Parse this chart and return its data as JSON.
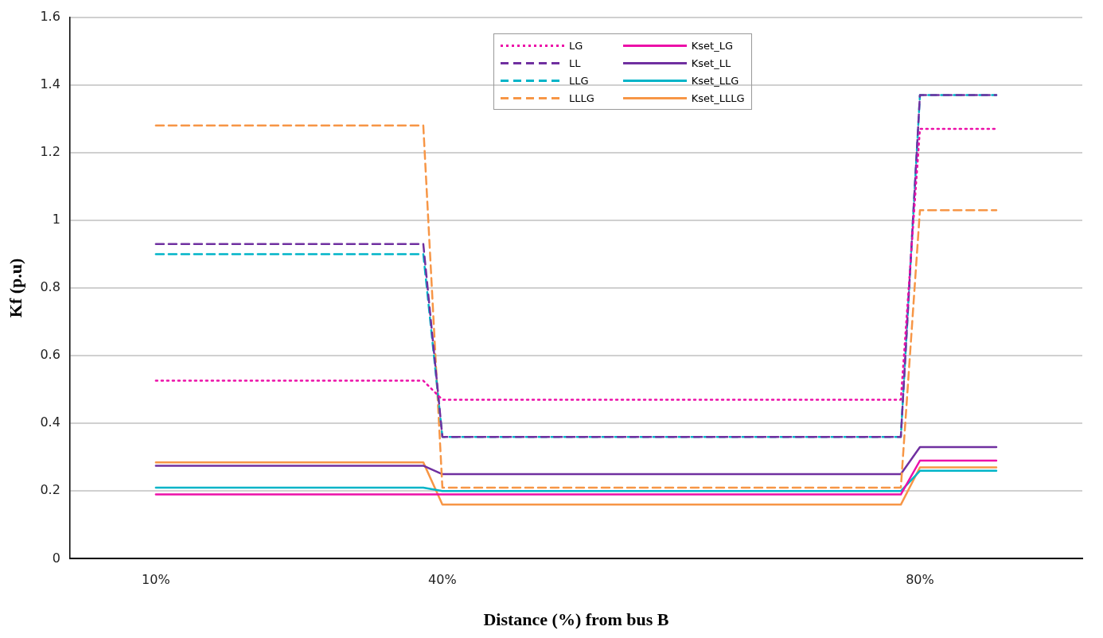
{
  "chart_data": {
    "type": "line",
    "xlabel": "Distance (%) from bus B",
    "ylabel": "Kf (p.u)",
    "categories": [
      null,
      null,
      null,
      null,
      "10%",
      null,
      null,
      null,
      null,
      null,
      null,
      null,
      null,
      null,
      null,
      null,
      null,
      null,
      null,
      "40%",
      null,
      null,
      null,
      null,
      null,
      null,
      null,
      null,
      null,
      null,
      null,
      null,
      null,
      null,
      null,
      null,
      null,
      null,
      null,
      null,
      null,
      null,
      null,
      null,
      "80%",
      null,
      null,
      null,
      null,
      null,
      null,
      null,
      null
    ],
    "ylim": [
      0,
      1.6
    ],
    "yticks": [
      0,
      0.2,
      0.4,
      0.6,
      0.8,
      1,
      1.2,
      1.4,
      1.6
    ],
    "grid": "y",
    "legend": "top",
    "marker": "none",
    "series": [
      {
        "name": "LG",
        "color": "#ec0fa8",
        "line_style": "dotted",
        "values": [
          null,
          null,
          null,
          null,
          0.526,
          0.526,
          0.526,
          0.526,
          0.526,
          0.526,
          0.526,
          0.526,
          0.526,
          0.526,
          0.526,
          0.526,
          0.526,
          0.526,
          0.526,
          0.47,
          0.47,
          0.47,
          0.47,
          0.47,
          0.47,
          0.47,
          0.47,
          0.47,
          0.47,
          0.47,
          0.47,
          0.47,
          0.47,
          0.47,
          0.47,
          0.47,
          0.47,
          0.47,
          0.47,
          0.47,
          0.47,
          0.47,
          0.47,
          0.47,
          1.27,
          1.27,
          1.27,
          1.27,
          1.27,
          null,
          null,
          null,
          null
        ]
      },
      {
        "name": "LL",
        "color": "#7030a0",
        "line_style": "dashed",
        "values": [
          null,
          null,
          null,
          null,
          0.93,
          0.93,
          0.93,
          0.93,
          0.93,
          0.93,
          0.93,
          0.93,
          0.93,
          0.93,
          0.93,
          0.93,
          0.93,
          0.93,
          0.93,
          0.36,
          0.36,
          0.36,
          0.36,
          0.36,
          0.36,
          0.36,
          0.36,
          0.36,
          0.36,
          0.36,
          0.36,
          0.36,
          0.36,
          0.36,
          0.36,
          0.36,
          0.36,
          0.36,
          0.36,
          0.36,
          0.36,
          0.36,
          0.36,
          0.36,
          1.37,
          1.37,
          1.37,
          1.37,
          1.37,
          null,
          null,
          null,
          null
        ]
      },
      {
        "name": "LLG",
        "color": "#00b4c8",
        "line_style": "dashed",
        "values": [
          null,
          null,
          null,
          null,
          0.9,
          0.9,
          0.9,
          0.9,
          0.9,
          0.9,
          0.9,
          0.9,
          0.9,
          0.9,
          0.9,
          0.9,
          0.9,
          0.9,
          0.9,
          0.36,
          0.36,
          0.36,
          0.36,
          0.36,
          0.36,
          0.36,
          0.36,
          0.36,
          0.36,
          0.36,
          0.36,
          0.36,
          0.36,
          0.36,
          0.36,
          0.36,
          0.36,
          0.36,
          0.36,
          0.36,
          0.36,
          0.36,
          0.36,
          0.36,
          1.37,
          1.37,
          1.37,
          1.37,
          1.37,
          null,
          null,
          null,
          null
        ]
      },
      {
        "name": "LLLG",
        "color": "#f79646",
        "line_style": "dashed",
        "values": [
          null,
          null,
          null,
          null,
          1.28,
          1.28,
          1.28,
          1.28,
          1.28,
          1.28,
          1.28,
          1.28,
          1.28,
          1.28,
          1.28,
          1.28,
          1.28,
          1.28,
          1.28,
          0.21,
          0.21,
          0.21,
          0.21,
          0.21,
          0.21,
          0.21,
          0.21,
          0.21,
          0.21,
          0.21,
          0.21,
          0.21,
          0.21,
          0.21,
          0.21,
          0.21,
          0.21,
          0.21,
          0.21,
          0.21,
          0.21,
          0.21,
          0.21,
          0.21,
          1.03,
          1.03,
          1.03,
          1.03,
          1.03,
          null,
          null,
          null,
          null
        ]
      },
      {
        "name": "Kset_LG",
        "color": "#ec0fa8",
        "line_style": "solid",
        "values": [
          null,
          null,
          null,
          null,
          0.19,
          0.19,
          0.19,
          0.19,
          0.19,
          0.19,
          0.19,
          0.19,
          0.19,
          0.19,
          0.19,
          0.19,
          0.19,
          0.19,
          0.19,
          0.19,
          0.19,
          0.19,
          0.19,
          0.19,
          0.19,
          0.19,
          0.19,
          0.19,
          0.19,
          0.19,
          0.19,
          0.19,
          0.19,
          0.19,
          0.19,
          0.19,
          0.19,
          0.19,
          0.19,
          0.19,
          0.19,
          0.19,
          0.19,
          0.19,
          0.29,
          0.29,
          0.29,
          0.29,
          0.29,
          null,
          null,
          null,
          null
        ]
      },
      {
        "name": "Kset_LL",
        "color": "#7030a0",
        "line_style": "solid",
        "values": [
          null,
          null,
          null,
          null,
          0.275,
          0.275,
          0.275,
          0.275,
          0.275,
          0.275,
          0.275,
          0.275,
          0.275,
          0.275,
          0.275,
          0.275,
          0.275,
          0.275,
          0.275,
          0.25,
          0.25,
          0.25,
          0.25,
          0.25,
          0.25,
          0.25,
          0.25,
          0.25,
          0.25,
          0.25,
          0.25,
          0.25,
          0.25,
          0.25,
          0.25,
          0.25,
          0.25,
          0.25,
          0.25,
          0.25,
          0.25,
          0.25,
          0.25,
          0.25,
          0.33,
          0.33,
          0.33,
          0.33,
          0.33,
          null,
          null,
          null,
          null
        ]
      },
      {
        "name": "Kset_LLG",
        "color": "#00b4c8",
        "line_style": "solid",
        "values": [
          null,
          null,
          null,
          null,
          0.21,
          0.21,
          0.21,
          0.21,
          0.21,
          0.21,
          0.21,
          0.21,
          0.21,
          0.21,
          0.21,
          0.21,
          0.21,
          0.21,
          0.21,
          0.2,
          0.2,
          0.2,
          0.2,
          0.2,
          0.2,
          0.2,
          0.2,
          0.2,
          0.2,
          0.2,
          0.2,
          0.2,
          0.2,
          0.2,
          0.2,
          0.2,
          0.2,
          0.2,
          0.2,
          0.2,
          0.2,
          0.2,
          0.2,
          0.2,
          0.26,
          0.26,
          0.26,
          0.26,
          0.26,
          null,
          null,
          null,
          null
        ]
      },
      {
        "name": "Kset_LLLG",
        "color": "#f79646",
        "line_style": "solid",
        "values": [
          null,
          null,
          null,
          null,
          0.285,
          0.285,
          0.285,
          0.285,
          0.285,
          0.285,
          0.285,
          0.285,
          0.285,
          0.285,
          0.285,
          0.285,
          0.285,
          0.285,
          0.285,
          0.16,
          0.16,
          0.16,
          0.16,
          0.16,
          0.16,
          0.16,
          0.16,
          0.16,
          0.16,
          0.16,
          0.16,
          0.16,
          0.16,
          0.16,
          0.16,
          0.16,
          0.16,
          0.16,
          0.16,
          0.16,
          0.16,
          0.16,
          0.16,
          0.16,
          0.27,
          0.27,
          0.27,
          0.27,
          0.27,
          null,
          null,
          null,
          null
        ]
      }
    ]
  }
}
